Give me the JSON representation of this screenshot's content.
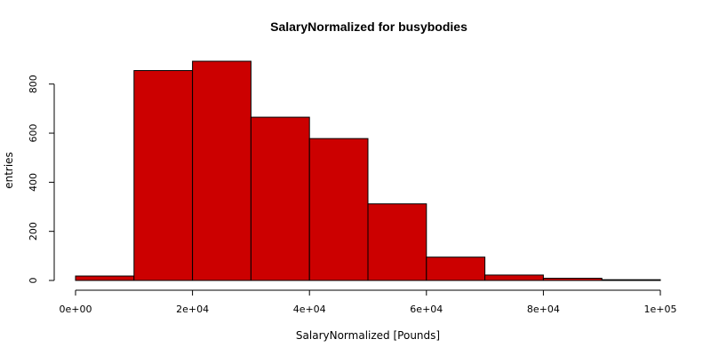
{
  "chart_data": {
    "type": "bar",
    "title": "SalaryNormalized for busybodies",
    "xlabel": "SalaryNormalized [Pounds]",
    "ylabel": "entries",
    "bins": [
      {
        "from": 0,
        "to": 10000,
        "count": 18
      },
      {
        "from": 10000,
        "to": 20000,
        "count": 855
      },
      {
        "from": 20000,
        "to": 30000,
        "count": 893
      },
      {
        "from": 30000,
        "to": 40000,
        "count": 665
      },
      {
        "from": 40000,
        "to": 50000,
        "count": 578
      },
      {
        "from": 50000,
        "to": 60000,
        "count": 312
      },
      {
        "from": 60000,
        "to": 70000,
        "count": 95
      },
      {
        "from": 70000,
        "to": 80000,
        "count": 22
      },
      {
        "from": 80000,
        "to": 90000,
        "count": 9
      },
      {
        "from": 90000,
        "to": 100000,
        "count": 3
      }
    ],
    "xlim": [
      0,
      100000
    ],
    "ylim": [
      0,
      893
    ],
    "x_ticks": [
      {
        "value": 0,
        "label": "0e+00"
      },
      {
        "value": 20000,
        "label": "2e+04"
      },
      {
        "value": 40000,
        "label": "4e+04"
      },
      {
        "value": 60000,
        "label": "6e+04"
      },
      {
        "value": 80000,
        "label": "8e+04"
      },
      {
        "value": 100000,
        "label": "1e+05"
      }
    ],
    "y_ticks": [
      {
        "value": 0,
        "label": "0"
      },
      {
        "value": 200,
        "label": "200"
      },
      {
        "value": 400,
        "label": "400"
      },
      {
        "value": 600,
        "label": "600"
      },
      {
        "value": 800,
        "label": "800"
      }
    ],
    "bar_color": "#cc0000",
    "grid": false
  }
}
